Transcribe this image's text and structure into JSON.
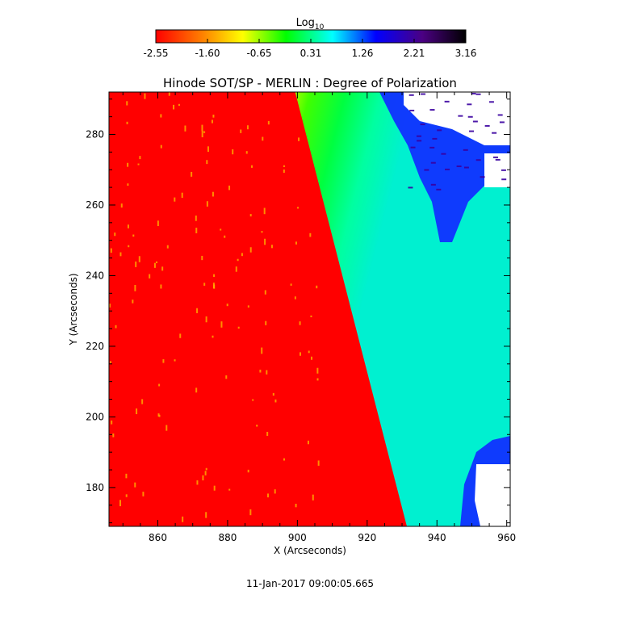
{
  "chart_data": {
    "type": "heatmap",
    "title": "Hinode SOT/SP - MERLIN : Degree of Polarization",
    "xlabel": "X (Arcseconds)",
    "ylabel": "Y (Arcseconds)",
    "xlim": [
      846,
      961
    ],
    "ylim": [
      169,
      292
    ],
    "xticks": [
      860,
      880,
      900,
      920,
      940,
      960
    ],
    "yticks": [
      180,
      200,
      220,
      240,
      260,
      280
    ],
    "colorbar": {
      "title_base": "Log",
      "title_sub": "10",
      "range": [
        -2.55,
        3.16
      ],
      "ticks": [
        "-2.55",
        "-1.60",
        "-0.65",
        "0.31",
        "1.26",
        "2.21",
        "3.16"
      ],
      "palette": [
        "#ff0000",
        "#ffa500",
        "#ffff00",
        "#00ff00",
        "#00ffff",
        "#0000ff",
        "#4b0082",
        "#000000"
      ]
    },
    "limb_edge": {
      "description_free": true,
      "points": [
        [
          904,
          292
        ],
        [
          936,
          169
        ]
      ]
    },
    "regions": [
      {
        "value": -2.55,
        "color": "#ff0000"
      },
      {
        "value": -1.6,
        "color": "#ffd000"
      },
      {
        "value": -0.65,
        "color": "#00ff00"
      },
      {
        "value": 0.31,
        "color": "#00e8c0"
      },
      {
        "value": 2.21,
        "color": "#0000ff"
      }
    ],
    "grid": false,
    "footer": "11-Jan-2017 09:00:05.665"
  }
}
